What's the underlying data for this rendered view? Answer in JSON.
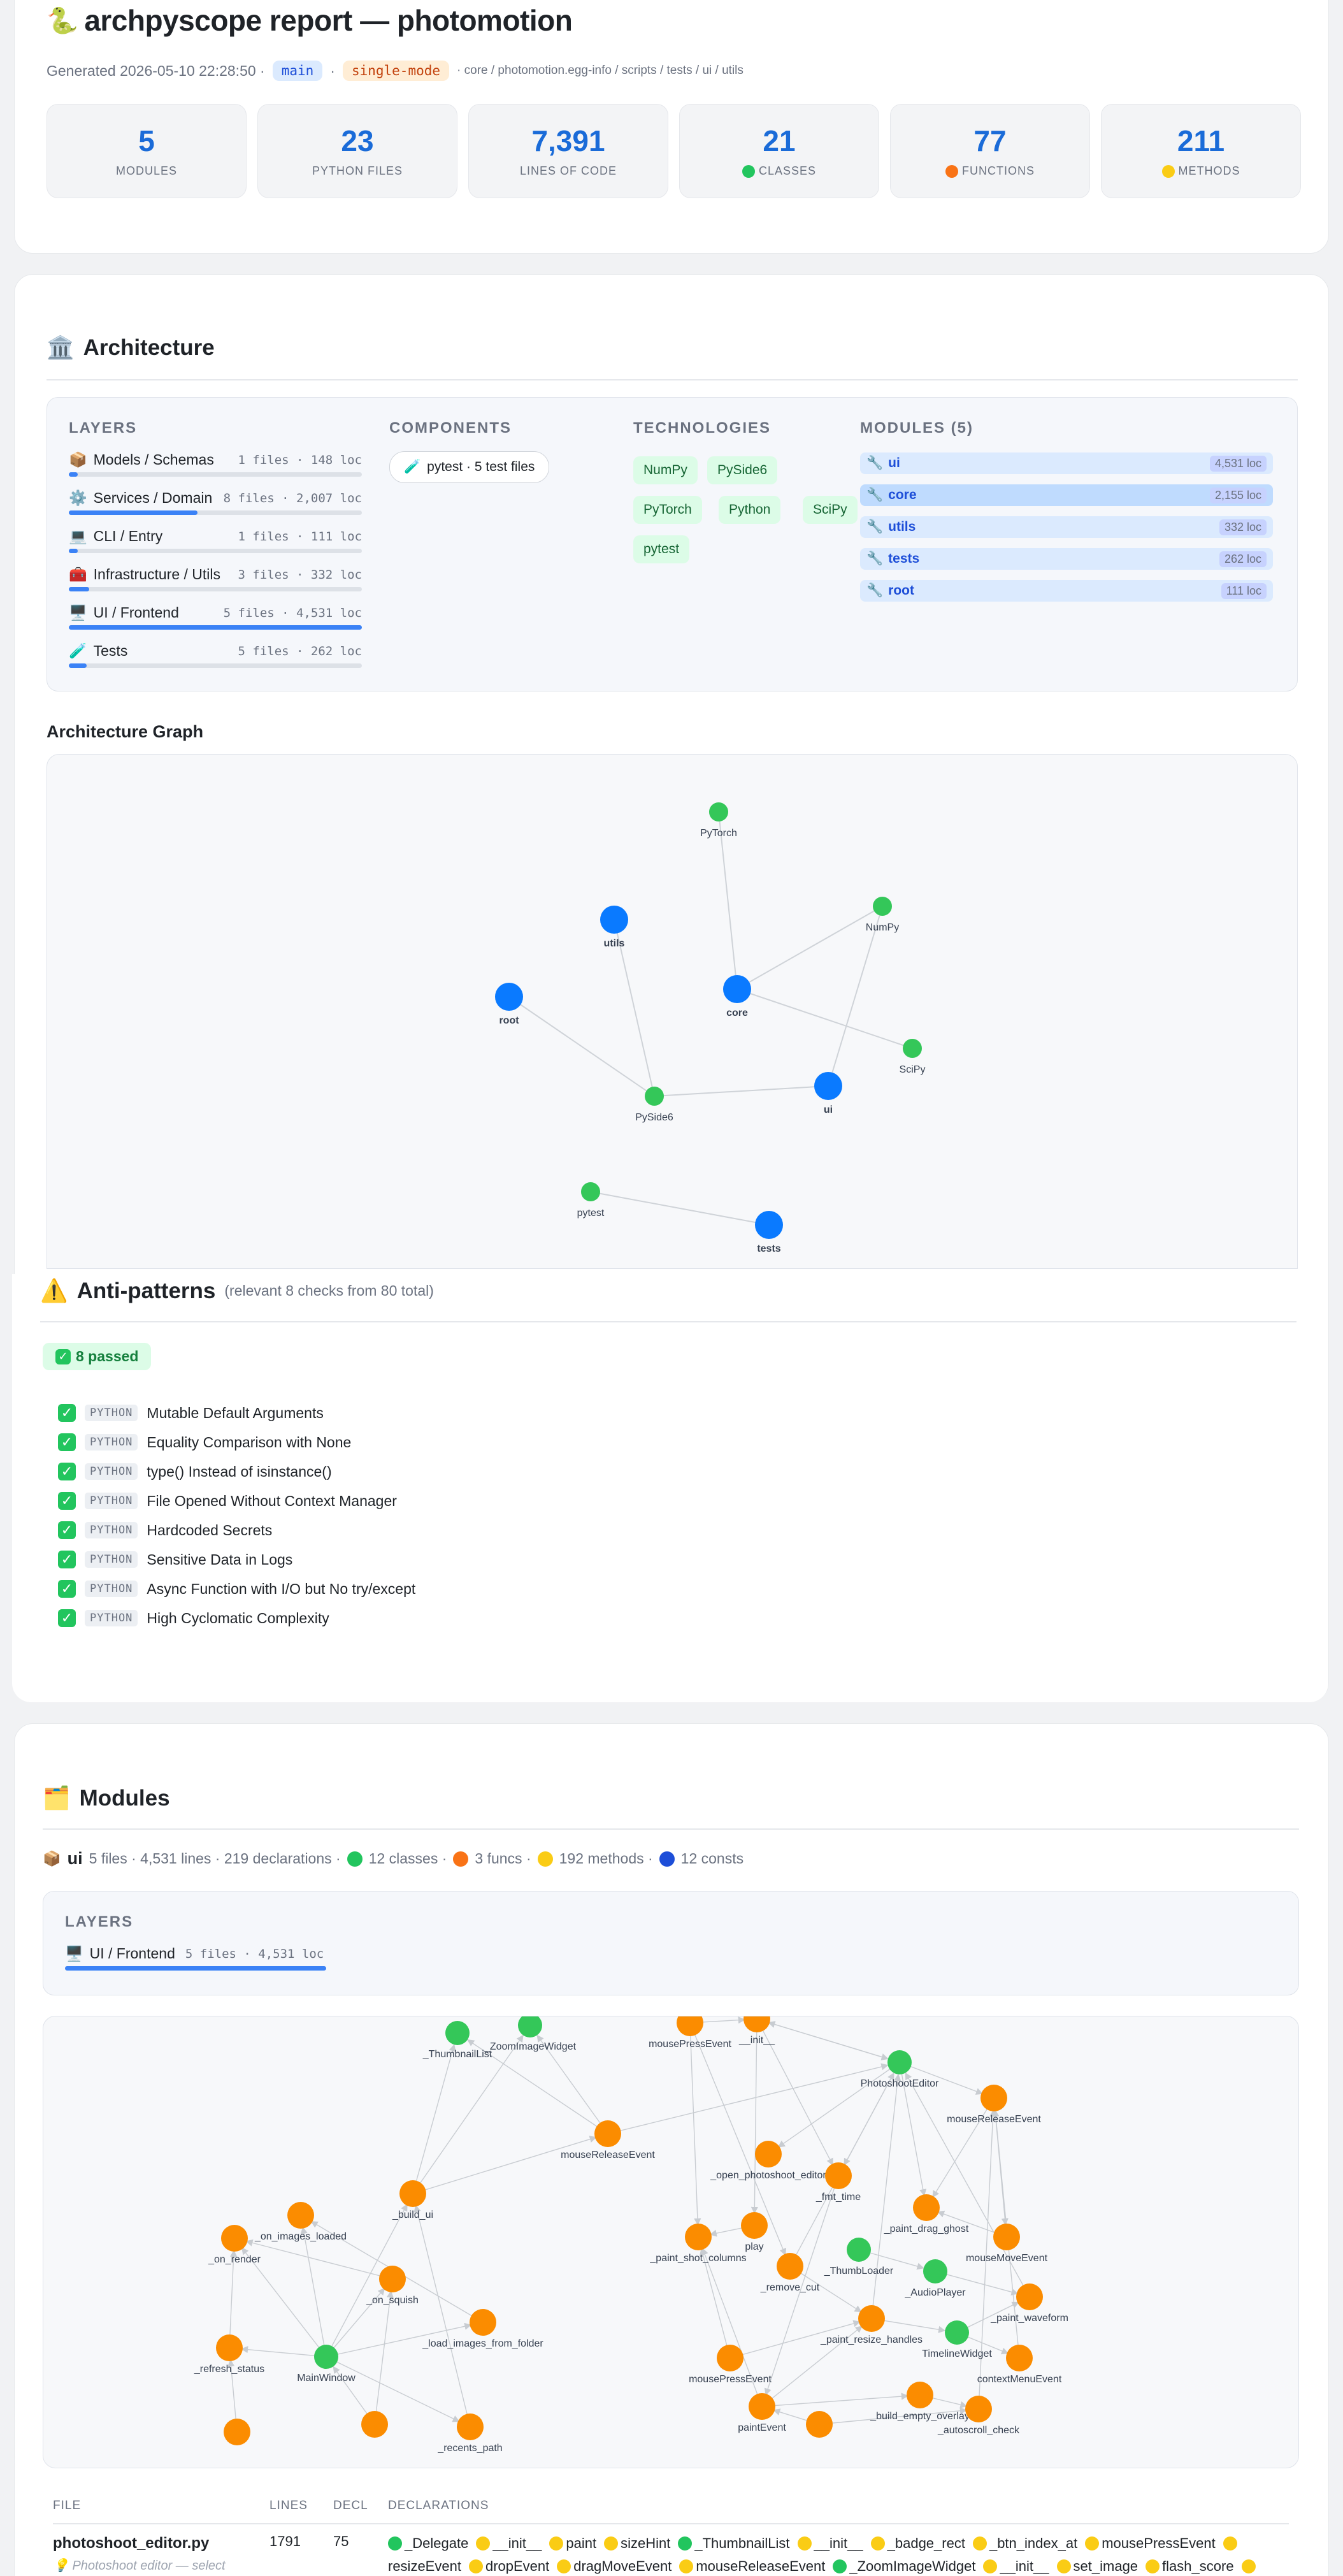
{
  "header": {
    "title": "archpyscope report — photomotion",
    "generated": "Generated 2026-05-10 22:28:50 ·",
    "branch": "main",
    "mode": "single-mode",
    "paths": "· core / photomotion.egg-info / scripts / tests / ui / utils",
    "snake_icon": "snake-icon"
  },
  "stats": [
    {
      "value": "5",
      "label": "MODULES"
    },
    {
      "value": "23",
      "label": "PYTHON FILES"
    },
    {
      "value": "7,391",
      "label": "LINES OF CODE"
    },
    {
      "value": "21",
      "label": "CLASSES",
      "dot": "#22c55e"
    },
    {
      "value": "77",
      "label": "FUNCTIONS",
      "dot": "#f97316"
    },
    {
      "value": "211",
      "label": "METHODS",
      "dot": "#facc15"
    }
  ],
  "architecture": {
    "title": "Architecture",
    "layers_title": "LAYERS",
    "layers": [
      {
        "name": "Models / Schemas",
        "meta": "1 files · 148 loc",
        "pct": 3,
        "icon": "📦"
      },
      {
        "name": "Services / Domain",
        "meta": "8 files · 2,007 loc",
        "pct": 44,
        "icon": "⚙️"
      },
      {
        "name": "CLI / Entry",
        "meta": "1 files · 111 loc",
        "pct": 3,
        "icon": "💻"
      },
      {
        "name": "Infrastructure / Utils",
        "meta": "3 files · 332 loc",
        "pct": 7,
        "icon": "🧰"
      },
      {
        "name": "UI / Frontend",
        "meta": "5 files · 4,531 loc",
        "pct": 100,
        "icon": "🖥️"
      },
      {
        "name": "Tests",
        "meta": "5 files · 262 loc",
        "pct": 6,
        "icon": "🧪"
      }
    ],
    "components_title": "COMPONENTS",
    "component": "pytest · 5 test files",
    "tech_title": "TECHNOLOGIES",
    "technologies": [
      "NumPy",
      "PySide6",
      "PyTorch",
      "Python",
      "SciPy",
      "pytest"
    ],
    "modules_title": "MODULES (5)",
    "modules": [
      {
        "name": "ui",
        "loc": "4,531 loc"
      },
      {
        "name": "core",
        "loc": "2,155 loc"
      },
      {
        "name": "utils",
        "loc": "332 loc"
      },
      {
        "name": "tests",
        "loc": "262 loc"
      },
      {
        "name": "root",
        "loc": "111 loc"
      }
    ],
    "graph_title": "Architecture Graph",
    "graph_labels": {
      "pytorch": "PyTorch",
      "numpy": "NumPy",
      "utils": "utils",
      "root": "root",
      "core": "core",
      "scipy": "SciPy",
      "pyside6": "PySide6",
      "ui": "ui",
      "pytest": "pytest",
      "tests": "tests"
    }
  },
  "antipatterns": {
    "title": "Anti-patterns",
    "subtitle": "(relevant 8 checks from 80 total)",
    "passed": "8 passed",
    "checks": [
      {
        "tag": "PYTHON",
        "text": "Mutable Default Arguments"
      },
      {
        "tag": "PYTHON",
        "text": "Equality Comparison with None"
      },
      {
        "tag": "PYTHON",
        "text": "type() Instead of isinstance()"
      },
      {
        "tag": "PYTHON",
        "text": "File Opened Without Context Manager"
      },
      {
        "tag": "PYTHON",
        "text": "Hardcoded Secrets"
      },
      {
        "tag": "PYTHON",
        "text": "Sensitive Data in Logs"
      },
      {
        "tag": "PYTHON",
        "text": "Async Function with I/O but No try/except"
      },
      {
        "tag": "PYTHON",
        "text": "High Cyclomatic Complexity"
      }
    ]
  },
  "modules_section": {
    "title": "Modules",
    "ui": {
      "name": "ui",
      "summary": "5 files · 4,531 lines · 219 declarations ·",
      "classes": "12 classes ·",
      "funcs": "3 funcs ·",
      "methods": "192 methods ·",
      "consts": "12 consts"
    },
    "layers_title": "LAYERS",
    "layer": {
      "name": "UI / Frontend",
      "meta": "5 files · 4,531 loc"
    },
    "graph_labels": {
      "thumb": "_ThumbnailList",
      "zoom": "_ZoomImageWidget",
      "mpe1": "mousePressEvent",
      "init": "__init__",
      "editor": "PhotoshootEditor",
      "mre1": "mouseReleaseEvent",
      "mre2": "mouseReleaseEvent",
      "ope": "_open_photoshoot_editor",
      "fmt": "_fmt_time",
      "build": "_build_ui",
      "pdg": "_paint_drag_ghost",
      "oil": "_on_images_loaded",
      "play": "play",
      "mme": "mouseMoveEvent",
      "onr": "_on_render",
      "psc": "_paint_shot_columns",
      "thl": "_ThumbLoader",
      "rmc": "_remove_cut",
      "aud": "_AudioPlayer",
      "pwf": "_paint_waveform",
      "osq": "_on_squish",
      "prh": "_paint_resize_handles",
      "tlw": "TimelineWidget",
      "lif": "_load_images_from_folder",
      "rst": "_refresh_status",
      "mw": "MainWindow",
      "mpe2": "mousePressEvent",
      "cme": "contextMenuEvent",
      "beo": "_build_empty_overlay",
      "pe": "paintEvent",
      "rp": "_recents_path",
      "asc": "_autoscroll_check"
    },
    "table": {
      "h_file": "FILE",
      "h_lines": "LINES",
      "h_decl": "DECL",
      "h_decls": "DECLARATIONS",
      "row": {
        "file": "photoshoot_editor.py",
        "lines": "1791",
        "decl": "75",
        "hint": "💡 Photoshoot editor — select",
        "decls": [
          {
            "c": "#22c55e",
            "t": "_Delegate"
          },
          {
            "c": "#facc15",
            "t": "__init__"
          },
          {
            "c": "#facc15",
            "t": "paint"
          },
          {
            "c": "#facc15",
            "t": "sizeHint"
          },
          {
            "c": "#22c55e",
            "t": "_ThumbnailList"
          },
          {
            "c": "#facc15",
            "t": "__init__"
          },
          {
            "c": "#facc15",
            "t": "_badge_rect"
          },
          {
            "c": "#facc15",
            "t": "_btn_index_at"
          },
          {
            "c": "#facc15",
            "t": "mousePressEvent"
          },
          {
            "c": "#facc15",
            "t": ""
          },
          {
            "c": "",
            "t": "resizeEvent"
          },
          {
            "c": "#facc15",
            "t": "dropEvent"
          },
          {
            "c": "#facc15",
            "t": "dragMoveEvent"
          },
          {
            "c": "#facc15",
            "t": "mouseReleaseEvent"
          },
          {
            "c": "#22c55e",
            "t": "_ZoomImageWidget"
          },
          {
            "c": "#facc15",
            "t": "__init__"
          },
          {
            "c": "#facc15",
            "t": "set_image"
          },
          {
            "c": "#facc15",
            "t": "flash_score"
          },
          {
            "c": "#facc15",
            "t": ""
          }
        ]
      }
    }
  }
}
